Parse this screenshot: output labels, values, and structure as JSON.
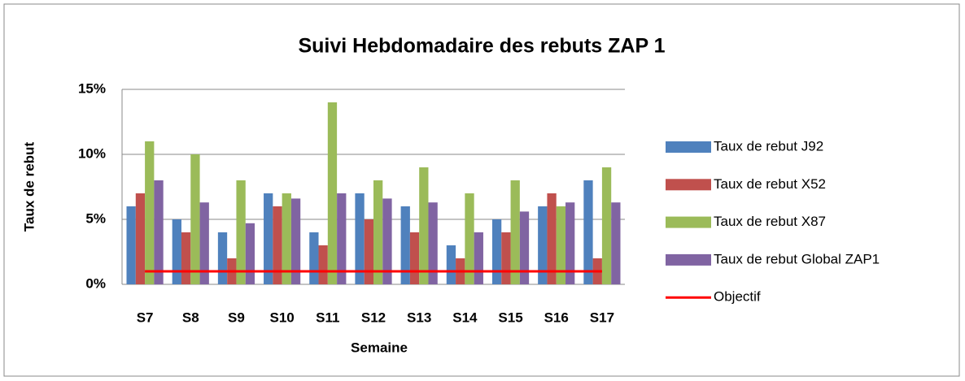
{
  "chart_data": {
    "type": "bar",
    "title": "Suivi Hebdomadaire des rebuts ZAP 1",
    "x_label": "Semaine",
    "y_label": "Taux de rebut",
    "categories": [
      "S7",
      "S8",
      "S9",
      "S10",
      "S11",
      "S12",
      "S13",
      "S14",
      "S15",
      "S16",
      "S17"
    ],
    "series": [
      {
        "name": "Taux de rebut J92",
        "color": "#4f81bd",
        "values": [
          6,
          5,
          4,
          7,
          4,
          7,
          6,
          3,
          5,
          6,
          8
        ]
      },
      {
        "name": "Taux de rebut X52",
        "color": "#c0504d",
        "values": [
          7,
          4,
          2,
          6,
          3,
          5,
          4,
          2,
          4,
          7,
          2
        ]
      },
      {
        "name": "Taux de rebut X87",
        "color": "#9bbb59",
        "values": [
          11,
          10,
          8,
          7,
          14,
          8,
          9,
          7,
          8,
          6,
          9
        ]
      },
      {
        "name": "Taux de rebut Global ZAP1",
        "color": "#8064a2",
        "values": [
          8,
          6.3,
          4.7,
          6.6,
          7,
          6.6,
          6.3,
          4,
          5.6,
          6.3,
          6.3
        ]
      },
      {
        "name": "Objectif",
        "color": "#ff0000",
        "type": "line",
        "values": [
          1,
          1,
          1,
          1,
          1,
          1,
          1,
          1,
          1,
          1,
          1
        ]
      }
    ],
    "ylim": [
      0,
      15
    ],
    "yticks": [
      {
        "value": 0,
        "label": "0%"
      },
      {
        "value": 5,
        "label": "5%"
      },
      {
        "value": 10,
        "label": "10%"
      },
      {
        "value": 15,
        "label": "15%"
      }
    ],
    "grid": true,
    "legend": "right"
  }
}
